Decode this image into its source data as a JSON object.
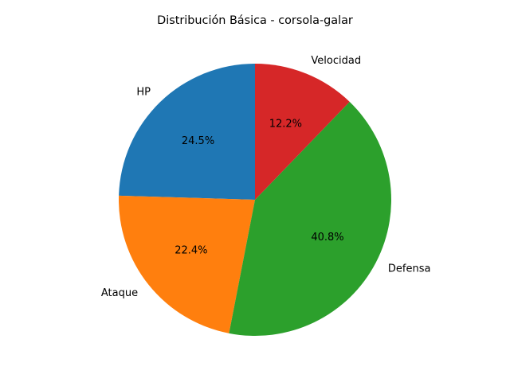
{
  "chart_data": {
    "type": "pie",
    "title": "Distribución Básica - corsola-galar",
    "start_angle_deg": 90,
    "direction": "counterclockwise",
    "slices": [
      {
        "label": "HP",
        "value": 24.5,
        "pct_label": "24.5%",
        "color": "#1f77b4"
      },
      {
        "label": "Ataque",
        "value": 22.4,
        "pct_label": "22.4%",
        "color": "#ff7f0e"
      },
      {
        "label": "Defensa",
        "value": 40.8,
        "pct_label": "40.8%",
        "color": "#2ca02c"
      },
      {
        "label": "Velocidad",
        "value": 12.2,
        "pct_label": "12.2%",
        "color": "#d62728"
      }
    ]
  }
}
